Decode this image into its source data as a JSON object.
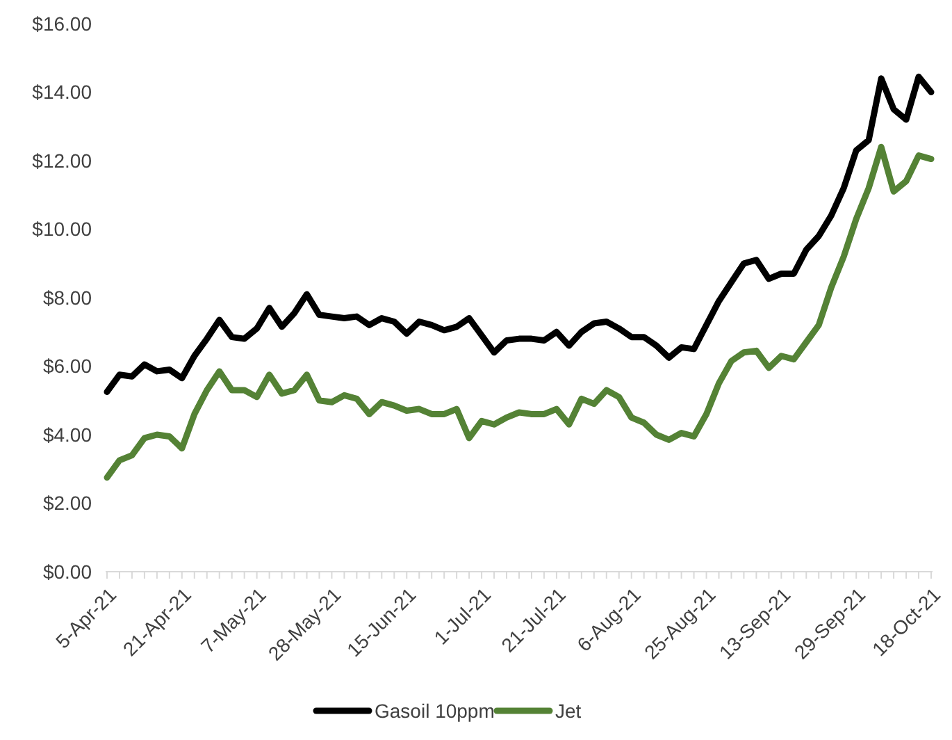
{
  "chart_data": {
    "type": "line",
    "categories": [
      "5-Apr-21",
      null,
      null,
      null,
      null,
      null,
      "21-Apr-21",
      null,
      null,
      null,
      null,
      null,
      "7-May-21",
      null,
      null,
      null,
      null,
      null,
      "28-May-21",
      null,
      null,
      null,
      null,
      null,
      "15-Jun-21",
      null,
      null,
      null,
      null,
      null,
      "1-Jul-21",
      null,
      null,
      null,
      null,
      null,
      "21-Jul-21",
      null,
      null,
      null,
      null,
      null,
      "6-Aug-21",
      null,
      null,
      null,
      null,
      null,
      "25-Aug-21",
      null,
      null,
      null,
      null,
      null,
      "13-Sep-21",
      null,
      null,
      null,
      null,
      null,
      "29-Sep-21",
      null,
      null,
      null,
      null,
      null,
      "18-Oct-21"
    ],
    "series": [
      {
        "name": "Gasoil 10ppm",
        "color": "#000000",
        "values": [
          5.25,
          5.75,
          5.7,
          6.05,
          5.85,
          5.9,
          5.65,
          6.3,
          6.8,
          7.35,
          6.85,
          6.8,
          7.1,
          7.7,
          7.15,
          7.55,
          8.1,
          7.5,
          7.45,
          7.4,
          7.45,
          7.2,
          7.4,
          7.3,
          6.95,
          7.3,
          7.2,
          7.05,
          7.15,
          7.4,
          6.9,
          6.4,
          6.75,
          6.8,
          6.8,
          6.75,
          7.0,
          6.6,
          7.0,
          7.25,
          7.3,
          7.1,
          6.85,
          6.85,
          6.6,
          6.25,
          6.55,
          6.5,
          7.2,
          7.9,
          8.45,
          9.0,
          9.1,
          8.55,
          8.7,
          8.7,
          9.4,
          9.8,
          10.4,
          11.2,
          12.3,
          12.6,
          14.4,
          13.5,
          13.2,
          14.45,
          14.0
        ]
      },
      {
        "name": "Jet",
        "color": "#548235",
        "values": [
          2.75,
          3.25,
          3.4,
          3.9,
          4.0,
          3.95,
          3.6,
          4.6,
          5.3,
          5.85,
          5.3,
          5.3,
          5.1,
          5.75,
          5.2,
          5.3,
          5.75,
          5.0,
          4.95,
          5.15,
          5.05,
          4.6,
          4.95,
          4.85,
          4.7,
          4.75,
          4.6,
          4.6,
          4.75,
          3.9,
          4.4,
          4.3,
          4.5,
          4.65,
          4.6,
          4.6,
          4.75,
          4.3,
          5.05,
          4.9,
          5.3,
          5.1,
          4.5,
          4.35,
          4.0,
          3.85,
          4.05,
          3.95,
          4.6,
          5.5,
          6.15,
          6.4,
          6.45,
          5.95,
          6.3,
          6.2,
          6.7,
          7.2,
          8.3,
          9.2,
          10.3,
          11.2,
          12.4,
          11.1,
          11.4,
          12.15,
          12.05
        ]
      }
    ],
    "ylim": [
      0,
      16
    ],
    "yticks": [
      {
        "value": 0,
        "label": "$0.00"
      },
      {
        "value": 2,
        "label": "$2.00"
      },
      {
        "value": 4,
        "label": "$4.00"
      },
      {
        "value": 6,
        "label": "$6.00"
      },
      {
        "value": 8,
        "label": "$8.00"
      },
      {
        "value": 10,
        "label": "$10.00"
      },
      {
        "value": 12,
        "label": "$12.00"
      },
      {
        "value": 14,
        "label": "$14.00"
      },
      {
        "value": 16,
        "label": "$16.00"
      }
    ],
    "grid": false,
    "legend": "bottom",
    "marker": "none",
    "line_style": "solid"
  }
}
